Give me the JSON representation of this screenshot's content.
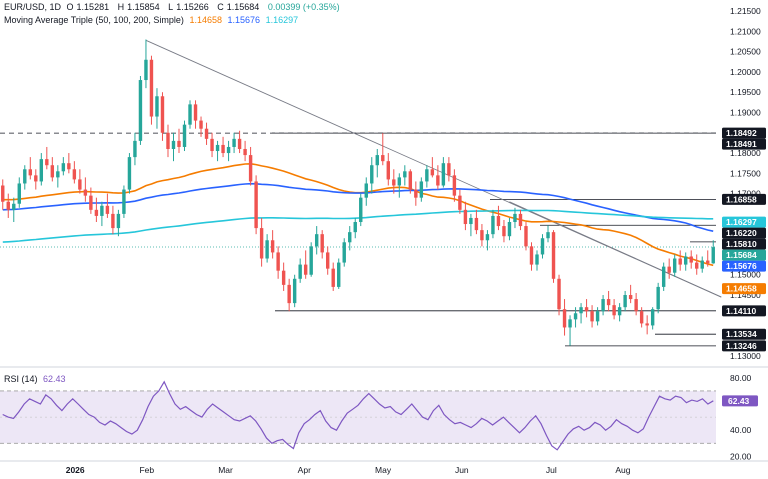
{
  "header": {
    "symbol": "EUR/USD, 1D",
    "ohlc": [
      {
        "label": "O",
        "value": "1.15281"
      },
      {
        "label": "H",
        "value": "1.15854"
      },
      {
        "label": "L",
        "value": "1.15266"
      },
      {
        "label": "C",
        "value": "1.15684"
      }
    ],
    "change": "0.00399 (+0.35%)",
    "ma_title": "Moving Average Triple (50, 100, 200, Simple)",
    "ma_values": [
      "1.14658",
      "1.15676",
      "1.16297"
    ]
  },
  "rsi_header": {
    "title": "RSI (14)",
    "value": "62.43"
  },
  "colors": {
    "up": "#26a69a",
    "down": "#ef5350",
    "ma50": "#f57c00",
    "ma100": "#2962ff",
    "ma200": "#26c6da",
    "rsi": "#7e57c2",
    "rsi_band": "#ede7f6",
    "trendline": "#787b86",
    "level": "#131722"
  },
  "chart_data": [
    {
      "type": "candlestick",
      "title": "EUR/USD, 1D",
      "x_ticks": [
        "2026",
        "Feb",
        "Mar",
        "Apr",
        "May",
        "Jun",
        "Jul",
        "Aug"
      ],
      "y_ticks": [
        "1.21500",
        "1.21000",
        "1.20500",
        "1.20000",
        "1.19500",
        "1.19000",
        "1.18000",
        "1.17500",
        "1.17000",
        "1.15000",
        "1.14500",
        "1.13000"
      ],
      "ylim": [
        1.1275,
        1.2165
      ],
      "price_now": "1.15684",
      "candles_ohlc": [
        [
          1.172,
          1.1735,
          1.166,
          1.168
        ],
        [
          1.168,
          1.17,
          1.164,
          1.166
        ],
        [
          1.166,
          1.169,
          1.163,
          1.1675
        ],
        [
          1.1675,
          1.174,
          1.1665,
          1.1725
        ],
        [
          1.1725,
          1.177,
          1.171,
          1.176
        ],
        [
          1.176,
          1.179,
          1.1735,
          1.1745
        ],
        [
          1.1745,
          1.176,
          1.171,
          1.173
        ],
        [
          1.173,
          1.18,
          1.172,
          1.1785
        ],
        [
          1.1785,
          1.1815,
          1.176,
          1.177
        ],
        [
          1.177,
          1.179,
          1.173,
          1.174
        ],
        [
          1.174,
          1.177,
          1.1715,
          1.1755
        ],
        [
          1.1755,
          1.179,
          1.1745,
          1.1775
        ],
        [
          1.1775,
          1.18,
          1.175,
          1.176
        ],
        [
          1.176,
          1.178,
          1.1725,
          1.1735
        ],
        [
          1.1735,
          1.176,
          1.17,
          1.171
        ],
        [
          1.171,
          1.174,
          1.168,
          1.1695
        ],
        [
          1.1695,
          1.1715,
          1.165,
          1.166
        ],
        [
          1.166,
          1.169,
          1.163,
          1.1645
        ],
        [
          1.1645,
          1.168,
          1.162,
          1.167
        ],
        [
          1.167,
          1.17,
          1.164,
          1.165
        ],
        [
          1.165,
          1.167,
          1.16,
          1.1615
        ],
        [
          1.1615,
          1.166,
          1.1595,
          1.165
        ],
        [
          1.165,
          1.172,
          1.164,
          1.171
        ],
        [
          1.171,
          1.18,
          1.17,
          1.179
        ],
        [
          1.179,
          1.185,
          1.177,
          1.183
        ],
        [
          1.183,
          1.199,
          1.182,
          1.198
        ],
        [
          1.198,
          1.208,
          1.196,
          1.203
        ],
        [
          1.203,
          1.204,
          1.187,
          1.189
        ],
        [
          1.189,
          1.196,
          1.186,
          1.194
        ],
        [
          1.194,
          1.195,
          1.183,
          1.185
        ],
        [
          1.185,
          1.187,
          1.179,
          1.181
        ],
        [
          1.181,
          1.185,
          1.178,
          1.183
        ],
        [
          1.183,
          1.186,
          1.18,
          1.1815
        ],
        [
          1.1815,
          1.188,
          1.1805,
          1.187
        ],
        [
          1.187,
          1.193,
          1.186,
          1.192
        ],
        [
          1.192,
          1.193,
          1.186,
          1.188
        ],
        [
          1.188,
          1.189,
          1.184,
          1.186
        ],
        [
          1.186,
          1.1875,
          1.182,
          1.1835
        ],
        [
          1.1835,
          1.185,
          1.179,
          1.1805
        ],
        [
          1.1805,
          1.183,
          1.178,
          1.182
        ],
        [
          1.182,
          1.184,
          1.179,
          1.18
        ],
        [
          1.18,
          1.183,
          1.178,
          1.1815
        ],
        [
          1.1815,
          1.185,
          1.18,
          1.1835
        ],
        [
          1.1835,
          1.1855,
          1.18,
          1.181
        ],
        [
          1.181,
          1.183,
          1.178,
          1.1795
        ],
        [
          1.1795,
          1.1815,
          1.172,
          1.173
        ],
        [
          1.173,
          1.1745,
          1.16,
          1.1615
        ],
        [
          1.1615,
          1.164,
          1.152,
          1.154
        ],
        [
          1.154,
          1.16,
          1.153,
          1.1585
        ],
        [
          1.1585,
          1.161,
          1.154,
          1.1555
        ],
        [
          1.1555,
          1.157,
          1.149,
          1.151
        ],
        [
          1.151,
          1.153,
          1.146,
          1.1475
        ],
        [
          1.1475,
          1.149,
          1.141,
          1.143
        ],
        [
          1.143,
          1.15,
          1.142,
          1.149
        ],
        [
          1.149,
          1.154,
          1.148,
          1.1525
        ],
        [
          1.1525,
          1.156,
          1.149,
          1.15
        ],
        [
          1.15,
          1.158,
          1.1495,
          1.157
        ],
        [
          1.157,
          1.162,
          1.155,
          1.16
        ],
        [
          1.16,
          1.161,
          1.154,
          1.1555
        ],
        [
          1.1555,
          1.157,
          1.15,
          1.1515
        ],
        [
          1.1515,
          1.153,
          1.146,
          1.147
        ],
        [
          1.147,
          1.154,
          1.1465,
          1.153
        ],
        [
          1.153,
          1.159,
          1.152,
          1.158
        ],
        [
          1.158,
          1.162,
          1.156,
          1.1605
        ],
        [
          1.1605,
          1.164,
          1.159,
          1.163
        ],
        [
          1.163,
          1.17,
          1.162,
          1.169
        ],
        [
          1.169,
          1.174,
          1.167,
          1.1725
        ],
        [
          1.1725,
          1.179,
          1.17,
          1.177
        ],
        [
          1.177,
          1.181,
          1.174,
          1.1795
        ],
        [
          1.1795,
          1.1849,
          1.177,
          1.178
        ],
        [
          1.178,
          1.18,
          1.172,
          1.1735
        ],
        [
          1.1735,
          1.176,
          1.17,
          1.172
        ],
        [
          1.172,
          1.175,
          1.169,
          1.174
        ],
        [
          1.174,
          1.177,
          1.172,
          1.1755
        ],
        [
          1.1755,
          1.176,
          1.17,
          1.171
        ],
        [
          1.171,
          1.173,
          1.167,
          1.169
        ],
        [
          1.169,
          1.174,
          1.168,
          1.173
        ],
        [
          1.173,
          1.177,
          1.1715,
          1.176
        ],
        [
          1.176,
          1.179,
          1.174,
          1.1745
        ],
        [
          1.1745,
          1.177,
          1.171,
          1.172
        ],
        [
          1.172,
          1.179,
          1.1715,
          1.1775
        ],
        [
          1.1775,
          1.179,
          1.173,
          1.1745
        ],
        [
          1.1745,
          1.176,
          1.168,
          1.1695
        ],
        [
          1.1695,
          1.171,
          1.165,
          1.166
        ],
        [
          1.166,
          1.168,
          1.161,
          1.1625
        ],
        [
          1.1625,
          1.165,
          1.1595,
          1.164
        ],
        [
          1.164,
          1.166,
          1.16,
          1.161
        ],
        [
          1.161,
          1.1625,
          1.157,
          1.1585
        ],
        [
          1.1585,
          1.161,
          1.156,
          1.16
        ],
        [
          1.16,
          1.166,
          1.159,
          1.1645
        ],
        [
          1.1645,
          1.167,
          1.161,
          1.162
        ],
        [
          1.162,
          1.1635,
          1.158,
          1.1595
        ],
        [
          1.1595,
          1.164,
          1.1585,
          1.163
        ],
        [
          1.163,
          1.1665,
          1.1615,
          1.165
        ],
        [
          1.165,
          1.166,
          1.161,
          1.162
        ],
        [
          1.162,
          1.163,
          1.156,
          1.157
        ],
        [
          1.157,
          1.158,
          1.151,
          1.1525
        ],
        [
          1.1525,
          1.156,
          1.151,
          1.155
        ],
        [
          1.155,
          1.16,
          1.154,
          1.159
        ],
        [
          1.159,
          1.1622,
          1.158,
          1.1605
        ],
        [
          1.1605,
          1.161,
          1.148,
          1.149
        ],
        [
          1.149,
          1.15,
          1.14,
          1.1415
        ],
        [
          1.1415,
          1.144,
          1.135,
          1.137
        ],
        [
          1.137,
          1.14,
          1.1325,
          1.139
        ],
        [
          1.139,
          1.142,
          1.137,
          1.1405
        ],
        [
          1.1405,
          1.143,
          1.138,
          1.142
        ],
        [
          1.142,
          1.144,
          1.1395,
          1.141
        ],
        [
          1.141,
          1.1425,
          1.137,
          1.1385
        ],
        [
          1.1385,
          1.142,
          1.1375,
          1.141
        ],
        [
          1.141,
          1.145,
          1.14,
          1.144
        ],
        [
          1.144,
          1.146,
          1.141,
          1.1425
        ],
        [
          1.1425,
          1.144,
          1.139,
          1.14
        ],
        [
          1.14,
          1.143,
          1.1385,
          1.142
        ],
        [
          1.142,
          1.146,
          1.141,
          1.145
        ],
        [
          1.145,
          1.1475,
          1.143,
          1.144
        ],
        [
          1.144,
          1.1455,
          1.14,
          1.141
        ],
        [
          1.141,
          1.142,
          1.137,
          1.138
        ],
        [
          1.138,
          1.14,
          1.1353,
          1.1375
        ],
        [
          1.1375,
          1.142,
          1.1365,
          1.1415
        ],
        [
          1.1415,
          1.148,
          1.1405,
          1.147
        ],
        [
          1.147,
          1.153,
          1.146,
          1.152
        ],
        [
          1.152,
          1.154,
          1.149,
          1.1505
        ],
        [
          1.1505,
          1.155,
          1.1495,
          1.154
        ],
        [
          1.154,
          1.156,
          1.151,
          1.1525
        ],
        [
          1.1525,
          1.1555,
          1.151,
          1.1545
        ],
        [
          1.1545,
          1.156,
          1.1515,
          1.153
        ],
        [
          1.153,
          1.155,
          1.15,
          1.1515
        ],
        [
          1.1515,
          1.1545,
          1.1505,
          1.1535
        ],
        [
          1.1535,
          1.156,
          1.152,
          1.1528
        ],
        [
          1.1528,
          1.1585,
          1.1527,
          1.1568
        ]
      ],
      "moving_averages": [
        {
          "name": "MA 50",
          "period": 50,
          "last": 1.14658
        },
        {
          "name": "MA 100",
          "period": 100,
          "last": 1.15676
        },
        {
          "name": "MA 200",
          "period": 200,
          "last": 1.16297
        }
      ],
      "level_labels": [
        {
          "value": 1.18492,
          "label": "1.18492",
          "style": "dashed"
        },
        {
          "value": 1.18491,
          "label": "1.18491",
          "style": "solid"
        },
        {
          "value": 1.16858,
          "label": "1.16858",
          "style": "solid"
        },
        {
          "value": 1.16297,
          "label": "1.16297",
          "style": "badge-ma200"
        },
        {
          "value": 1.1622,
          "label": "1.16220",
          "style": "solid"
        },
        {
          "value": 1.1581,
          "label": "1.15810",
          "style": "solid"
        },
        {
          "value": 1.15684,
          "label": "1.15684",
          "style": "badge-price"
        },
        {
          "value": 1.15676,
          "label": "1.15676",
          "style": "badge-ma100"
        },
        {
          "value": 1.14658,
          "label": "1.14658",
          "style": "badge-ma50"
        },
        {
          "value": 1.1411,
          "label": "1.14110",
          "style": "solid"
        },
        {
          "value": 1.13534,
          "label": "1.13534",
          "style": "solid"
        },
        {
          "value": 1.13246,
          "label": "1.13246",
          "style": "solid"
        }
      ]
    },
    {
      "type": "line",
      "title": "RSI (14)",
      "y_ticks": [
        "80.00",
        "40.00",
        "20.00"
      ],
      "ylim": [
        18,
        86
      ],
      "band": [
        30,
        70
      ],
      "last": 62.43,
      "values": [
        52,
        50,
        49,
        54,
        60,
        64,
        62,
        60,
        67,
        64,
        59,
        55,
        60,
        64,
        60,
        56,
        52,
        50,
        46,
        44,
        47,
        45,
        42,
        39,
        37,
        40,
        48,
        58,
        66,
        70,
        77,
        68,
        60,
        56,
        58,
        55,
        52,
        50,
        56,
        60,
        57,
        54,
        51,
        48,
        47,
        49,
        51,
        47,
        41,
        34,
        30,
        32,
        33,
        29,
        26,
        38,
        45,
        48,
        52,
        55,
        47,
        42,
        40,
        47,
        53,
        56,
        59,
        64,
        68,
        64,
        60,
        57,
        58,
        54,
        52,
        56,
        60,
        55,
        50,
        48,
        55,
        59,
        52,
        48,
        45,
        46,
        44,
        42,
        45,
        49,
        47,
        44,
        47,
        50,
        46,
        42,
        38,
        42,
        47,
        51,
        45,
        36,
        28,
        25,
        31,
        37,
        41,
        43,
        40,
        42,
        46,
        44,
        40,
        43,
        48,
        45,
        43,
        40,
        38,
        41,
        50,
        58,
        66,
        64,
        63,
        66,
        65,
        61,
        63,
        62,
        64,
        60,
        62.43
      ]
    }
  ]
}
